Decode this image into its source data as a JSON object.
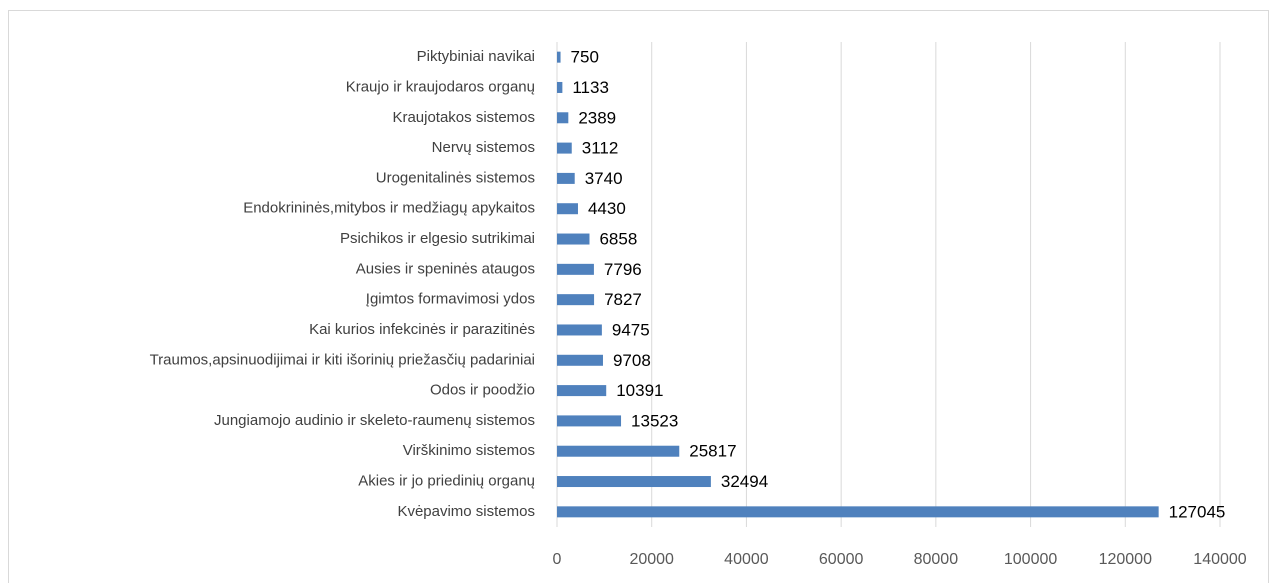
{
  "chart_data": {
    "type": "bar",
    "orientation": "horizontal",
    "categories": [
      "Piktybiniai navikai",
      "Kraujo ir kraujodaros organų",
      "Kraujotakos sistemos",
      "Nervų sistemos",
      "Urogenitalinės sistemos",
      "Endokrininės,mitybos ir medžiagų apykaitos",
      "Psichikos ir elgesio sutrikimai",
      "Ausies ir speninės ataugos",
      "Įgimtos formavimosi ydos",
      "Kai kurios infekcinės ir parazitinės",
      "Traumos,apsinuodijimai ir kiti išorinių priežasčių padariniai",
      "Odos ir poodžio",
      "Jungiamojo audinio ir skeleto-raumenų sistemos",
      "Virškinimo sistemos",
      "Akies ir jo priedinių organų",
      "Kvėpavimo sistemos"
    ],
    "values": [
      750,
      1133,
      2389,
      3112,
      3740,
      4430,
      6858,
      7796,
      7827,
      9475,
      9708,
      10391,
      13523,
      25817,
      32494,
      127045
    ],
    "color": "#4f81bd",
    "xlim": [
      0,
      140000
    ],
    "xticks": [
      0,
      20000,
      40000,
      60000,
      80000,
      100000,
      120000,
      140000
    ],
    "grid": true
  }
}
